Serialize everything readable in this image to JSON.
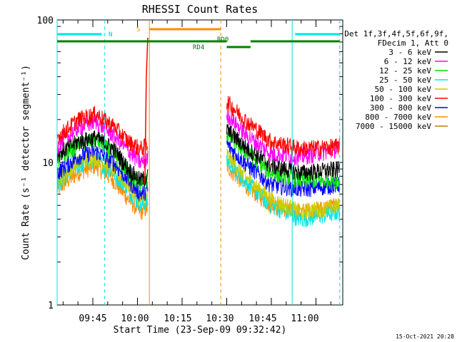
{
  "chart_data": {
    "type": "line",
    "title": "RHESSI Count Rates",
    "xlabel": "Start Time (23-Sep-09 09:32:42)",
    "ylabel": "Count Rate (s⁻¹ detector segment⁻¹)",
    "yscale": "log",
    "xlim": [
      "09:33",
      "11:09"
    ],
    "ylim": [
      1,
      100
    ],
    "x_tick_labels": [
      "09:45",
      "10:00",
      "10:15",
      "10:30",
      "10:45",
      "11:00"
    ],
    "y_tick_labels": [
      "1",
      "10",
      "100"
    ],
    "grid": false,
    "legend_placement": "right",
    "legend_header": [
      "Det 1f,3f,4f,5f,6f,9f,",
      "FDecim 1, Att 0"
    ],
    "data_gap": [
      "10:04",
      "10:30"
    ],
    "series": [
      {
        "name": "3 - 6 keV",
        "color": "#000000",
        "x": [
          "09:33",
          "09:40",
          "09:46",
          "09:52",
          "09:57",
          "10:01",
          "10:30",
          "10:36",
          "10:45",
          "10:55",
          "11:08"
        ],
        "values": [
          11.5,
          14.0,
          15.0,
          12.5,
          9.0,
          7.5,
          17.0,
          13.0,
          9.5,
          8.5,
          9.0
        ]
      },
      {
        "name": "6 - 12 keV",
        "color": "#ff00ff",
        "x": [
          "09:33",
          "09:40",
          "09:46",
          "09:52",
          "09:57",
          "10:01",
          "10:30",
          "10:36",
          "10:45",
          "10:55",
          "11:08"
        ],
        "values": [
          13.0,
          17.5,
          19.5,
          15.5,
          12.0,
          10.0,
          22.0,
          16.0,
          11.5,
          11.0,
          12.5
        ]
      },
      {
        "name": "12 - 25 keV",
        "color": "#00e000",
        "x": [
          "09:33",
          "09:40",
          "09:46",
          "09:52",
          "09:57",
          "10:01",
          "10:30",
          "10:36",
          "10:45",
          "10:55",
          "11:08"
        ],
        "values": [
          10.0,
          13.5,
          14.5,
          11.5,
          8.5,
          7.0,
          16.0,
          12.0,
          8.5,
          7.5,
          7.5
        ]
      },
      {
        "name": "25 - 50 keV",
        "color": "#00e5e5",
        "x": [
          "09:33",
          "09:40",
          "09:46",
          "09:52",
          "09:57",
          "10:01",
          "10:30",
          "10:36",
          "10:45",
          "10:55",
          "11:08"
        ],
        "values": [
          7.0,
          9.5,
          10.5,
          8.5,
          6.5,
          5.0,
          10.5,
          7.5,
          5.0,
          4.0,
          4.5
        ]
      },
      {
        "name": "50 - 100 keV",
        "color": "#cccc00",
        "x": [
          "09:33",
          "09:40",
          "09:46",
          "09:52",
          "09:57",
          "10:01",
          "10:30",
          "10:36",
          "10:45",
          "10:55",
          "11:08"
        ],
        "values": [
          7.5,
          10.0,
          11.0,
          9.0,
          7.0,
          5.5,
          11.5,
          8.0,
          5.5,
          4.5,
          5.0
        ]
      },
      {
        "name": "100 - 300 keV",
        "color": "#ff0000",
        "x": [
          "09:33",
          "09:40",
          "09:46",
          "09:52",
          "09:57",
          "10:01",
          "10:30",
          "10:36",
          "10:45",
          "10:55",
          "11:08"
        ],
        "values": [
          15.0,
          20.0,
          22.0,
          18.0,
          14.0,
          12.5,
          27.0,
          20.0,
          14.0,
          12.5,
          13.0
        ]
      },
      {
        "name": "300 - 800 keV",
        "color": "#0000ff",
        "x": [
          "09:33",
          "09:40",
          "09:46",
          "09:52",
          "09:57",
          "10:01",
          "10:30",
          "10:36",
          "10:45",
          "10:55",
          "11:08"
        ],
        "values": [
          8.5,
          11.0,
          12.0,
          10.0,
          7.5,
          6.0,
          13.5,
          10.0,
          7.0,
          6.5,
          7.0
        ]
      },
      {
        "name": "800 - 7000 keV",
        "color": "#ff8c00",
        "x": [
          "09:33",
          "09:40",
          "09:46",
          "09:52",
          "09:57",
          "10:01",
          "10:30",
          "10:36",
          "10:45",
          "10:55",
          "11:08"
        ],
        "values": [
          6.5,
          8.5,
          9.5,
          7.5,
          5.5,
          4.5,
          9.5,
          7.0,
          5.0,
          4.5,
          5.0
        ]
      },
      {
        "name": "7000 - 15000 keV",
        "color": "#c47a00",
        "x": [],
        "values": []
      }
    ],
    "annotations": [
      {
        "label": "N",
        "color": "#00e5e5",
        "x": "09:47"
      },
      {
        "label": "S",
        "color": "#ff8c00",
        "x": "10:04"
      },
      {
        "label": "RD0",
        "color": "#008000",
        "x": "10:31"
      },
      {
        "label": "RD4",
        "color": "#008000",
        "x": "10:25"
      }
    ]
  },
  "timestamp": "15-Oct-2021 20:28"
}
